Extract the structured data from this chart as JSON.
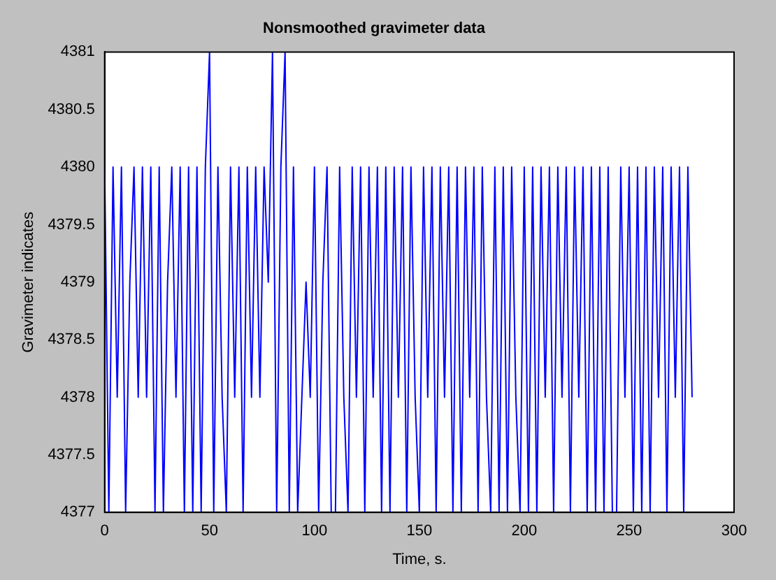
{
  "chart_data": {
    "type": "line",
    "title": "Nonsmoothed gravimeter data",
    "xlabel": "Time, s.",
    "ylabel": "Gravimeter indicates",
    "x": [
      0,
      2,
      4,
      6,
      8,
      10,
      12,
      14,
      16,
      18,
      20,
      22,
      24,
      26,
      28,
      30,
      32,
      34,
      36,
      38,
      40,
      42,
      44,
      46,
      48,
      50,
      52,
      54,
      56,
      58,
      60,
      62,
      64,
      66,
      68,
      70,
      72,
      74,
      76,
      78,
      80,
      82,
      84,
      86,
      88,
      90,
      92,
      94,
      96,
      98,
      100,
      102,
      104,
      106,
      108,
      110,
      112,
      114,
      116,
      118,
      120,
      122,
      124,
      126,
      128,
      130,
      132,
      134,
      136,
      138,
      140,
      142,
      144,
      146,
      148,
      150,
      152,
      154,
      156,
      158,
      160,
      162,
      164,
      166,
      168,
      170,
      172,
      174,
      176,
      178,
      180,
      182,
      184,
      186,
      188,
      190,
      192,
      194,
      196,
      198,
      200,
      202,
      204,
      206,
      208,
      210,
      212,
      214,
      216,
      218,
      220,
      222,
      224,
      226,
      228,
      230,
      232,
      234,
      236,
      238,
      240,
      242,
      244,
      246,
      248,
      250,
      252,
      254,
      256,
      258,
      260,
      262,
      264,
      266,
      268,
      270,
      272,
      274,
      276,
      278,
      280
    ],
    "series": [
      {
        "color": "#0000ff",
        "values": [
          4380,
          4377,
          4380,
          4378,
          4380,
          4377,
          4379,
          4380,
          4378,
          4380,
          4378,
          4380,
          4377,
          4380,
          4377,
          4379,
          4380,
          4378,
          4380,
          4377,
          4380,
          4377,
          4380,
          4377,
          4380,
          4381,
          4377,
          4380,
          4378,
          4377,
          4380,
          4378,
          4380,
          4377,
          4380,
          4378,
          4380,
          4378,
          4380,
          4379,
          4381,
          4377,
          4380,
          4381,
          4377,
          4380,
          4377,
          4378,
          4379,
          4378,
          4380,
          4377,
          4379,
          4380,
          4377,
          4377,
          4380,
          4378,
          4377,
          4380,
          4378,
          4380,
          4377,
          4380,
          4378,
          4380,
          4377,
          4380,
          4377,
          4380,
          4378,
          4380,
          4377,
          4380,
          4378,
          4377,
          4380,
          4378,
          4380,
          4377,
          4380,
          4378,
          4380,
          4377,
          4380,
          4377,
          4380,
          4378,
          4380,
          4377,
          4380,
          4378,
          4377,
          4380,
          4377,
          4380,
          4377,
          4380,
          4378,
          4377,
          4380,
          4377,
          4380,
          4377,
          4380,
          4378,
          4380,
          4377,
          4380,
          4378,
          4380,
          4377,
          4380,
          4378,
          4380,
          4377,
          4380,
          4377,
          4380,
          4377,
          4380,
          4377,
          4377,
          4380,
          4378,
          4380,
          4377,
          4380,
          4377,
          4380,
          4377,
          4380,
          4378,
          4380,
          4377,
          4380,
          4378,
          4380,
          4377,
          4380,
          4378
        ]
      }
    ],
    "xlim": [
      0,
      300
    ],
    "xticks": [
      0,
      50,
      100,
      150,
      200,
      250,
      300
    ],
    "ylim": [
      4377,
      4381
    ],
    "yticks": [
      4377,
      4377.5,
      4378,
      4378.5,
      4379,
      4379.5,
      4380,
      4380.5,
      4381
    ]
  }
}
